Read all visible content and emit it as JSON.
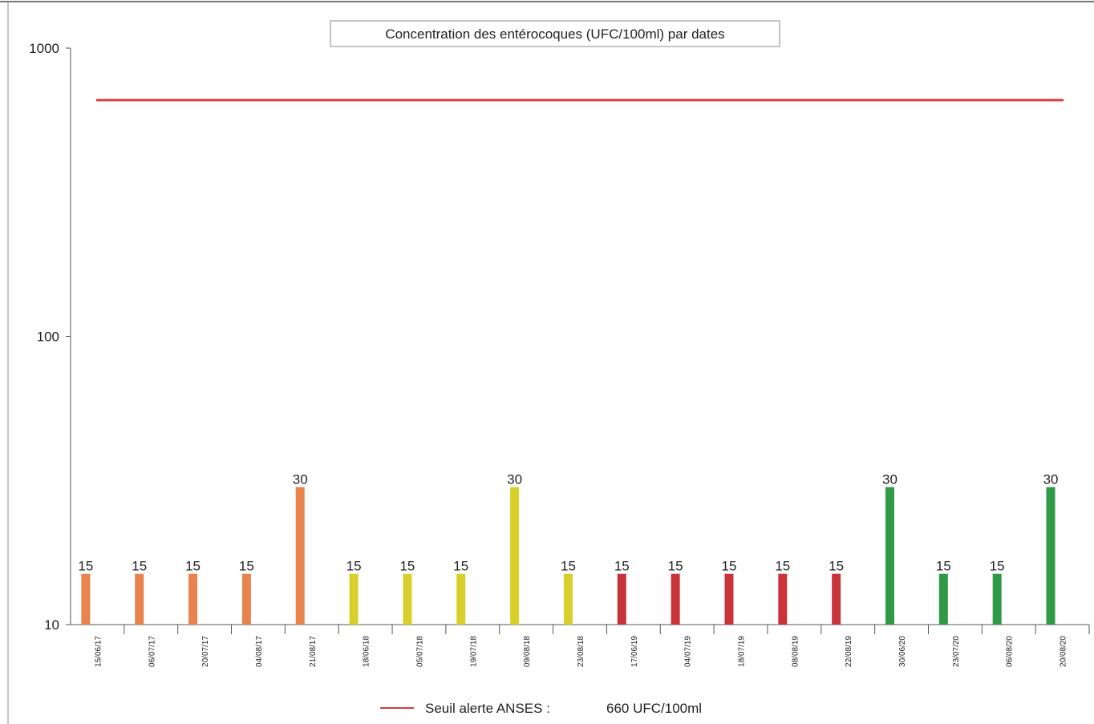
{
  "colors": {
    "threshold": "#d93a3a",
    "axis": "#555555",
    "orange": "#e8834e",
    "yellow": "#d9cf2a",
    "red": "#c8343a",
    "green": "#2f9a46"
  },
  "chart_data": {
    "type": "bar",
    "title": "Concentration des entérocoques (UFC/100ml) par dates",
    "y_scale": "log",
    "ylim": [
      10,
      1000
    ],
    "y_ticks": [
      "10",
      "100",
      "1000"
    ],
    "categories": [
      "15/06/17",
      "06/07/17",
      "20/07/17",
      "04/08/17",
      "21/08/17",
      "18/06/18",
      "05/07/18",
      "19/07/18",
      "09/08/18",
      "23/08/18",
      "17/06/19",
      "04/07/19",
      "18/07/19",
      "08/08/19",
      "22/08/19",
      "30/06/20",
      "23/07/20",
      "06/08/20",
      "20/08/20"
    ],
    "values": [
      15,
      15,
      15,
      15,
      30,
      15,
      15,
      15,
      30,
      15,
      15,
      15,
      15,
      15,
      15,
      30,
      15,
      15,
      30
    ],
    "bar_colors": [
      "orange",
      "orange",
      "orange",
      "orange",
      "orange",
      "yellow",
      "yellow",
      "yellow",
      "yellow",
      "yellow",
      "red",
      "red",
      "red",
      "red",
      "red",
      "green",
      "green",
      "green",
      "green"
    ],
    "threshold": {
      "value": 660,
      "legend_label": "Seuil alerte ANSES :",
      "legend_value": "660  UFC/100ml"
    },
    "grid": false,
    "legend_position": "bottom-center"
  }
}
